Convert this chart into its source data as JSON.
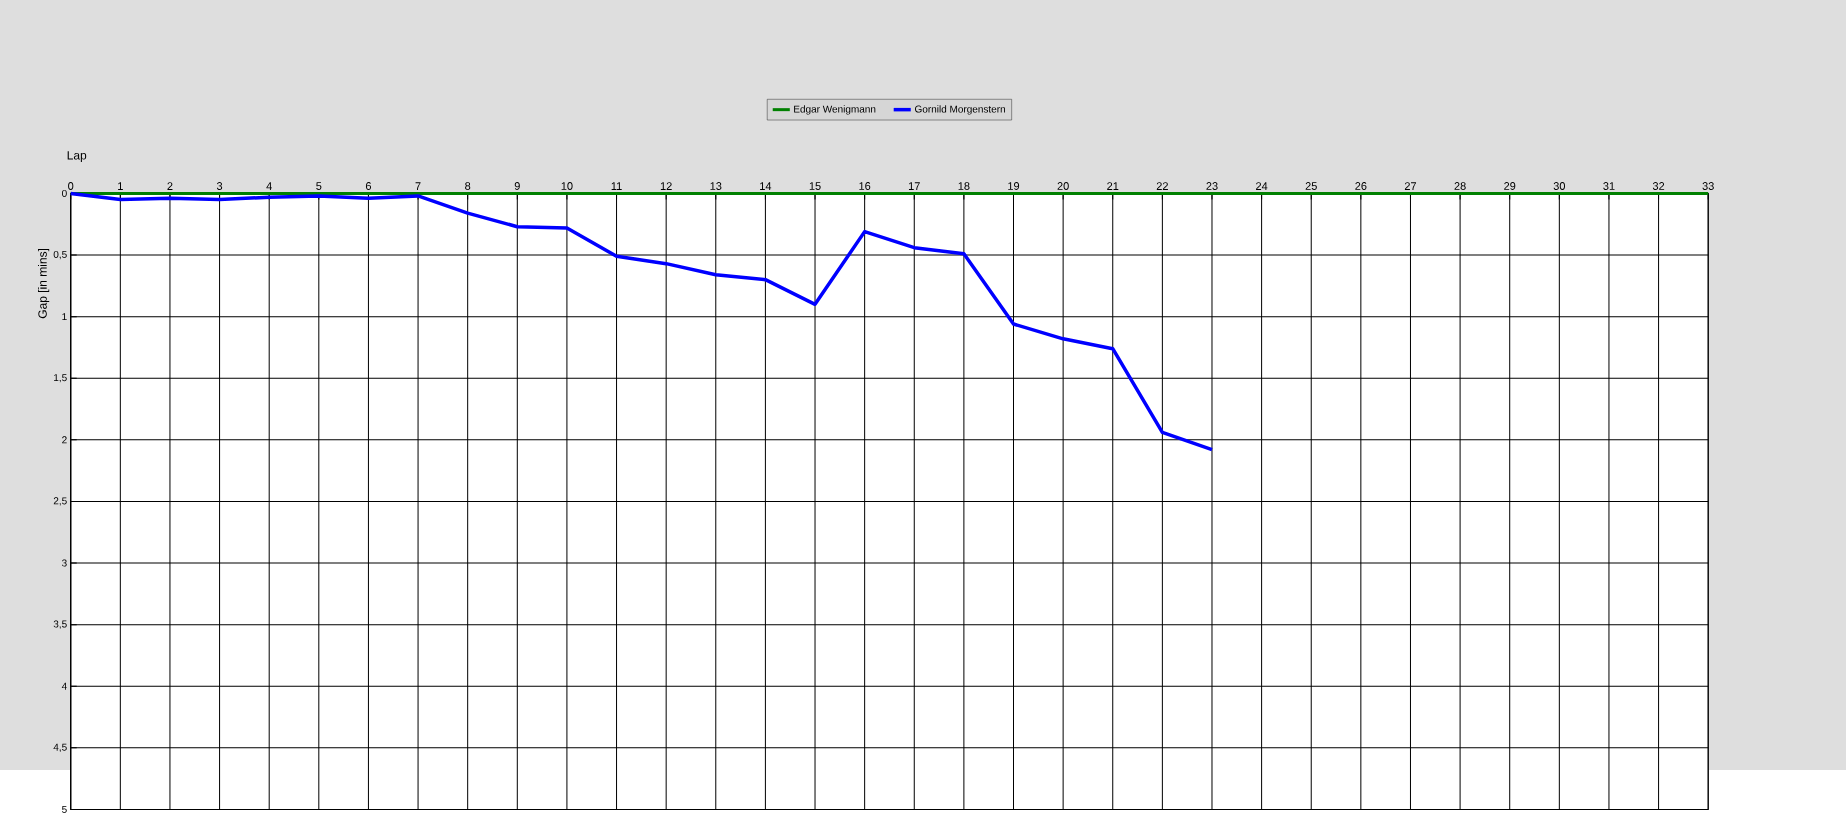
{
  "chart_data": {
    "type": "line",
    "xlabel": "Lap",
    "ylabel": "Gap [in mins]",
    "x": [
      0,
      1,
      2,
      3,
      4,
      5,
      6,
      7,
      8,
      9,
      10,
      11,
      12,
      13,
      14,
      15,
      16,
      17,
      18,
      19,
      20,
      21,
      22,
      23,
      24,
      25,
      26,
      27,
      28,
      29,
      30,
      31,
      32,
      33
    ],
    "series": [
      {
        "name": "Edgar Wenigmann",
        "color": "#008000",
        "values": [
          0,
          0,
          0,
          0,
          0,
          0,
          0,
          0,
          0,
          0,
          0,
          0,
          0,
          0,
          0,
          0,
          0,
          0,
          0,
          0,
          0,
          0,
          0,
          0,
          0,
          0,
          0,
          0,
          0,
          0,
          0,
          0,
          0,
          0
        ]
      },
      {
        "name": "Gornild Morgenstern",
        "color": "#0000ff",
        "values": [
          0,
          0.05,
          0.04,
          0.05,
          0.03,
          0.02,
          0.04,
          0.02,
          0.16,
          0.27,
          0.28,
          0.51,
          0.57,
          0.66,
          0.7,
          0.9,
          0.31,
          0.44,
          0.49,
          1.06,
          1.18,
          1.26,
          1.94,
          2.08,
          null,
          null,
          null,
          null,
          null,
          null,
          null,
          null,
          null,
          null
        ]
      }
    ],
    "xlim": [
      0,
      33
    ],
    "xticks": [
      0,
      1,
      2,
      3,
      4,
      5,
      6,
      7,
      8,
      9,
      10,
      11,
      12,
      13,
      14,
      15,
      16,
      17,
      18,
      19,
      20,
      21,
      22,
      23,
      24,
      25,
      26,
      27,
      28,
      29,
      30,
      31,
      32,
      33
    ],
    "ylim": [
      5,
      0
    ],
    "yticks": [
      0,
      {
        "value": 0.5,
        "label": "0,5"
      },
      1,
      {
        "value": 1.5,
        "label": "1,5"
      },
      2,
      {
        "value": 2.5,
        "label": "2,5"
      },
      3,
      {
        "value": 3.5,
        "label": "3,5"
      },
      4,
      {
        "value": 4.5,
        "label": "4,5"
      },
      5
    ],
    "grid": true,
    "legend": "top"
  }
}
